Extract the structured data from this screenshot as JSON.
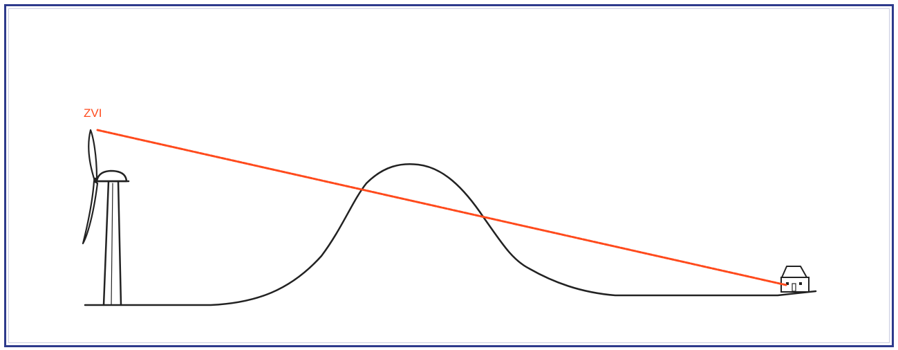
{
  "diagram": {
    "sightline_label": "ZVI",
    "colors": {
      "frame": "#2d3a8c",
      "sightline": "#ff4a1c",
      "ink": "#222222"
    },
    "elements": {
      "turbine": "wind-turbine",
      "hill": "hill",
      "house": "house",
      "sightline": "line-of-sight"
    }
  }
}
